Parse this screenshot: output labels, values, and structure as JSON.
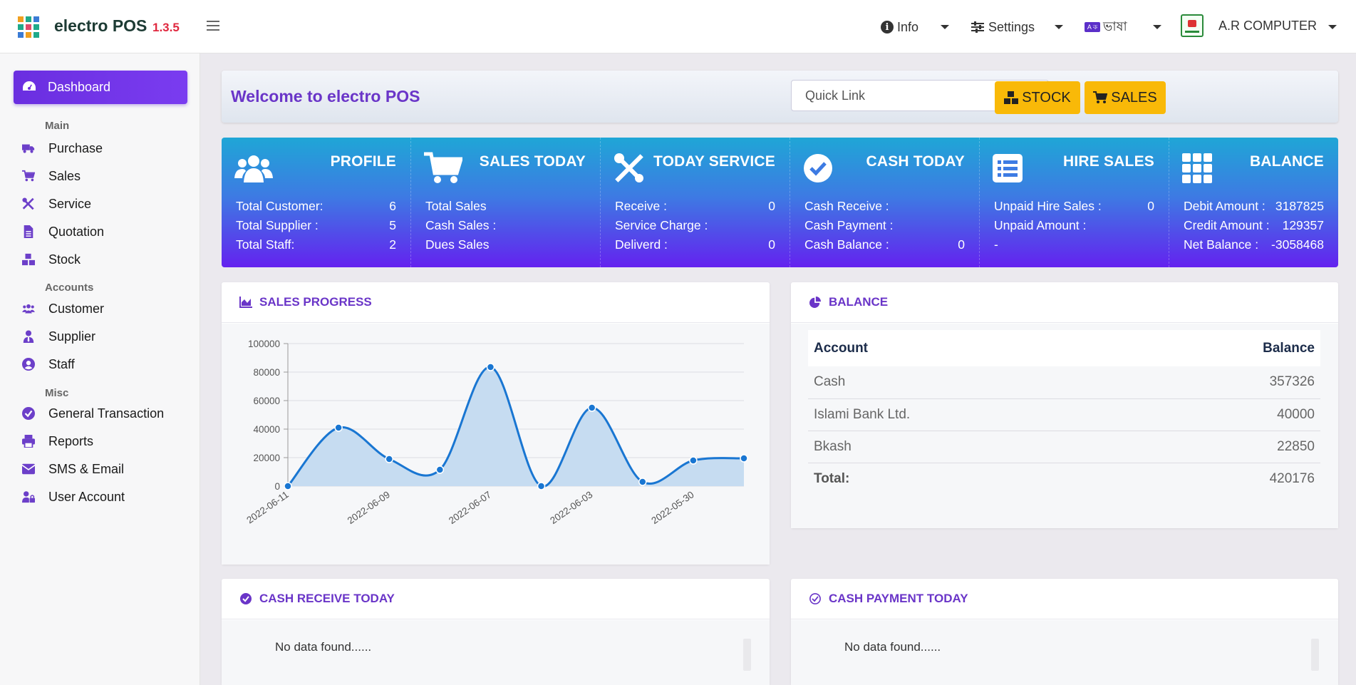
{
  "app": {
    "name": "electro POS",
    "version": "1.3.5"
  },
  "topnav": {
    "info": "Info",
    "settings": "Settings",
    "language": "ভাষা",
    "language_badge": "A ক",
    "user": "A.R COMPUTER"
  },
  "sidebar": {
    "dashboard": "Dashboard",
    "sections": {
      "main": "Main",
      "accounts": "Accounts",
      "misc": "Misc"
    },
    "main_items": [
      {
        "label": "Purchase",
        "icon": "truck-icon"
      },
      {
        "label": "Sales",
        "icon": "cart-icon"
      },
      {
        "label": "Service",
        "icon": "tools-icon"
      },
      {
        "label": "Quotation",
        "icon": "file-icon"
      },
      {
        "label": "Stock",
        "icon": "boxes-icon"
      }
    ],
    "account_items": [
      {
        "label": "Customer",
        "icon": "users-icon"
      },
      {
        "label": "Supplier",
        "icon": "user-tie-icon"
      },
      {
        "label": "Staff",
        "icon": "user-circle-icon"
      }
    ],
    "misc_items": [
      {
        "label": "General Transaction",
        "icon": "check-circle-icon"
      },
      {
        "label": "Reports",
        "icon": "print-icon"
      },
      {
        "label": "SMS & Email",
        "icon": "envelope-icon"
      },
      {
        "label": "User Account",
        "icon": "user-lock-icon"
      }
    ]
  },
  "welcome": {
    "title": "Welcome to electro POS",
    "quick_link": "Quick Link",
    "stock_button": "STOCK",
    "sales_button": "SALES"
  },
  "stats": {
    "profile": {
      "title": "PROFILE",
      "rows": [
        {
          "label": "Total Customer:",
          "value": "6"
        },
        {
          "label": "Total Supplier :",
          "value": "5"
        },
        {
          "label": "Total Staff:",
          "value": "2"
        }
      ]
    },
    "sales_today": {
      "title": "SALES TODAY",
      "rows": [
        {
          "label": "Total Sales",
          "value": ""
        },
        {
          "label": "Cash Sales :",
          "value": ""
        },
        {
          "label": "Dues Sales",
          "value": ""
        }
      ]
    },
    "today_service": {
      "title": "TODAY SERVICE",
      "rows": [
        {
          "label": "Receive :",
          "value": "0"
        },
        {
          "label": "Service Charge :",
          "value": ""
        },
        {
          "label": "Deliverd :",
          "value": "0"
        }
      ]
    },
    "cash_today": {
      "title": "CASH TODAY",
      "rows": [
        {
          "label": "Cash Receive :",
          "value": ""
        },
        {
          "label": "Cash Payment :",
          "value": ""
        },
        {
          "label": "Cash Balance :",
          "value": "0"
        }
      ]
    },
    "hire_sales": {
      "title": "HIRE SALES",
      "rows": [
        {
          "label": "Unpaid Hire Sales :",
          "value": "0"
        },
        {
          "label": "Unpaid Amount :",
          "value": ""
        },
        {
          "label": "-",
          "value": ""
        }
      ]
    },
    "balance": {
      "title": "BALANCE",
      "rows": [
        {
          "label": "Debit Amount :",
          "value": "3187825"
        },
        {
          "label": "Credit Amount :",
          "value": "129357"
        },
        {
          "label": "Net Balance :",
          "value": "-3058468"
        }
      ]
    }
  },
  "sales_progress": {
    "title": "SALES PROGRESS"
  },
  "chart_data": {
    "type": "area",
    "title": "",
    "xlabel": "",
    "ylabel": "",
    "ylim": [
      0,
      100000
    ],
    "yticks": [
      "0",
      "20000",
      "40000",
      "60000",
      "80000",
      "100000"
    ],
    "x_tick_labels": [
      "2022-06-11",
      "2022-06-09",
      "2022-06-07",
      "2022-06-03",
      "2022-05-30"
    ],
    "values": [
      0,
      41000,
      19000,
      11500,
      83500,
      0,
      55000,
      3000,
      18000,
      19500
    ],
    "grid": true,
    "legend": "none",
    "line_color": "#1976d2",
    "fill_color": "#c6dcf1"
  },
  "balance_card": {
    "title": "BALANCE",
    "headers": {
      "account": "Account",
      "balance": "Balance"
    },
    "rows": [
      {
        "account": "Cash",
        "balance": "357326"
      },
      {
        "account": "Islami Bank Ltd.",
        "balance": "40000"
      },
      {
        "account": "Bkash",
        "balance": "22850"
      }
    ],
    "total_label": "Total:",
    "total_value": "420176"
  },
  "cash_receive": {
    "title": "CASH RECEIVE TODAY",
    "empty": "No data found......"
  },
  "cash_payment": {
    "title": "CASH PAYMENT TODAY",
    "empty": "No data found......"
  },
  "colors": {
    "accent": "#6a35c8",
    "button_yellow": "#f9b908",
    "danger": "#e0283f"
  }
}
